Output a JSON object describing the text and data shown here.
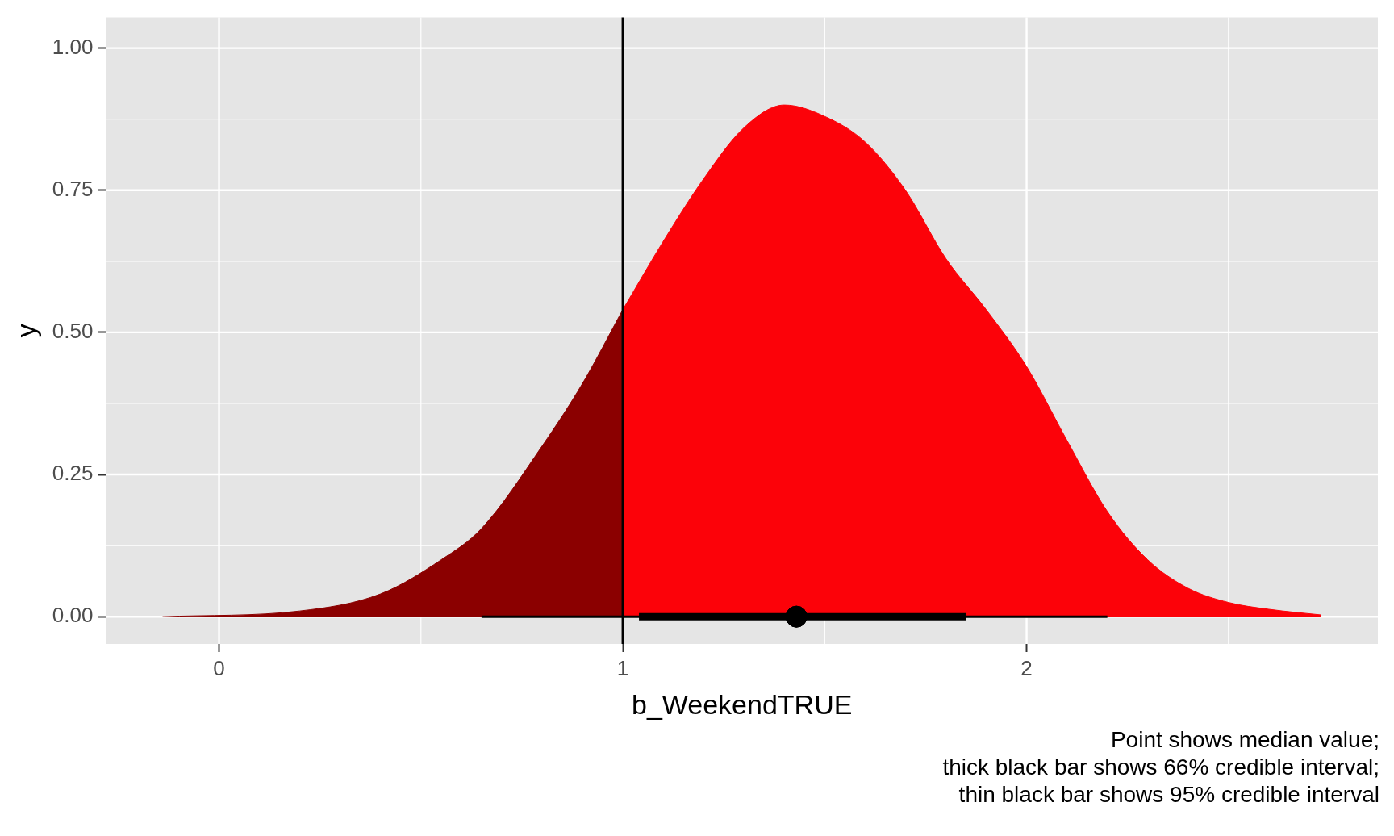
{
  "chart_data": {
    "type": "area",
    "xlabel": "b_WeekendTRUE",
    "ylabel": "y",
    "annotations": [
      "Point shows median value;",
      "thick black bar shows 66% credible interval;",
      "thin black bar shows 95% credible interval"
    ],
    "series": [
      {
        "color": "#8b0000",
        "x": [
          -0.14,
          0.2,
          0.4,
          0.55,
          0.65,
          0.8,
          0.9,
          1.0
        ],
        "values": [
          0,
          0.01,
          0.04,
          0.1,
          0.155,
          0.3,
          0.41,
          0.54
        ]
      },
      {
        "color": "#fc0209",
        "x": [
          1.0,
          1.1,
          1.2,
          1.3,
          1.4,
          1.5,
          1.6,
          1.7,
          1.8,
          1.9,
          2.0,
          2.1,
          2.2,
          2.3,
          2.4,
          2.5,
          2.6,
          2.73
        ],
        "values": [
          0.54,
          0.66,
          0.77,
          0.86,
          0.9,
          0.88,
          0.835,
          0.75,
          0.63,
          0.54,
          0.44,
          0.31,
          0.185,
          0.1,
          0.05,
          0.025,
          0.013,
          0.003
        ]
      },
      {
        "type": "line",
        "color": "#000000",
        "x": [
          1.04,
          1.85
        ],
        "values": [
          0,
          0
        ]
      },
      {
        "type": "scatter",
        "color": "#000000",
        "marker": "circle",
        "x": [
          1.43
        ],
        "values": [
          0
        ],
        "xerrors": [
          [
            0.65,
            2.2
          ]
        ]
      }
    ],
    "ref_lines": [
      {
        "axis": "x",
        "value": 1,
        "color": "#000000"
      }
    ],
    "xlim": [
      -0.28,
      2.87
    ],
    "ylim": [
      -0.048,
      1.054
    ],
    "xticks": [
      0,
      1,
      2
    ],
    "yticks": [
      {
        "value": 0,
        "label": "0.00"
      },
      {
        "value": 0.25,
        "label": "0.25"
      },
      {
        "value": 0.5,
        "label": "0.50"
      },
      {
        "value": 0.75,
        "label": "0.75"
      },
      {
        "value": 1,
        "label": "1.00"
      }
    ],
    "grid": true,
    "legend": false
  }
}
